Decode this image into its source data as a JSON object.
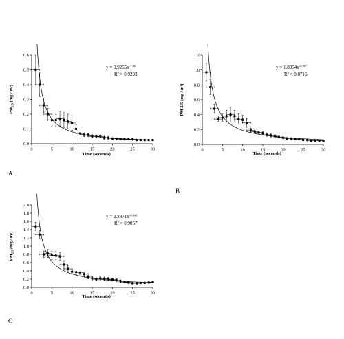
{
  "chart_data": [
    {
      "type": "scatter",
      "panel_label": "A",
      "xlabel": "Time (seconds)",
      "ylabel": {
        "main": "PM",
        "sub": "2.5",
        "unit": " (mg / m³)"
      },
      "xlim": [
        0,
        30
      ],
      "ylim": [
        0,
        0.6
      ],
      "x_ticks": [
        0,
        5,
        10,
        15,
        20,
        25,
        30
      ],
      "y_ticks": [
        "0.0",
        "0.1",
        "0.2",
        "0.3",
        "0.4",
        "0.5",
        "0.6"
      ],
      "equation": {
        "base": "y = 0.9255x",
        "exp": "-1.06"
      },
      "r2": "R² = 0.9293",
      "fit": {
        "a": 0.9255,
        "b": -1.06
      },
      "points": [
        {
          "x": 1,
          "y": 0.5,
          "xe": 1,
          "ye": 0.1
        },
        {
          "x": 2,
          "y": 0.4,
          "xe": 1,
          "ye": 0.08
        },
        {
          "x": 3,
          "y": 0.26,
          "xe": 1,
          "ye": 0.05
        },
        {
          "x": 4,
          "y": 0.2,
          "xe": 1,
          "ye": 0.04
        },
        {
          "x": 5,
          "y": 0.16,
          "xe": 1,
          "ye": 0.04
        },
        {
          "x": 6,
          "y": 0.16,
          "xe": 1,
          "ye": 0.04
        },
        {
          "x": 7,
          "y": 0.17,
          "xe": 1,
          "ye": 0.05
        },
        {
          "x": 8,
          "y": 0.16,
          "xe": 1,
          "ye": 0.05
        },
        {
          "x": 9,
          "y": 0.15,
          "xe": 1,
          "ye": 0.05
        },
        {
          "x": 10,
          "y": 0.14,
          "xe": 1,
          "ye": 0.05
        },
        {
          "x": 11,
          "y": 0.1,
          "xe": 1,
          "ye": 0.03
        },
        {
          "x": 12,
          "y": 0.07,
          "xe": 1,
          "ye": 0.03
        },
        {
          "x": 13,
          "y": 0.06,
          "xe": 1,
          "ye": 0.01
        },
        {
          "x": 14,
          "y": 0.06,
          "xe": 1,
          "ye": 0.01
        },
        {
          "x": 15,
          "y": 0.05,
          "xe": 1,
          "ye": 0.01
        },
        {
          "x": 16,
          "y": 0.05,
          "xe": 1,
          "ye": 0.01
        },
        {
          "x": 17,
          "y": 0.05,
          "xe": 1,
          "ye": 0.01
        },
        {
          "x": 18,
          "y": 0.04,
          "xe": 1,
          "ye": 0.01
        },
        {
          "x": 19,
          "y": 0.04,
          "xe": 1,
          "ye": 0.01
        },
        {
          "x": 20,
          "y": 0.035,
          "xe": 1,
          "ye": 0.005
        },
        {
          "x": 21,
          "y": 0.035,
          "xe": 1,
          "ye": 0.005
        },
        {
          "x": 22,
          "y": 0.03,
          "xe": 1,
          "ye": 0.005
        },
        {
          "x": 23,
          "y": 0.03,
          "xe": 1,
          "ye": 0.005
        },
        {
          "x": 24,
          "y": 0.03,
          "xe": 1,
          "ye": 0.005
        },
        {
          "x": 25,
          "y": 0.03,
          "xe": 1,
          "ye": 0.005
        },
        {
          "x": 26,
          "y": 0.025,
          "xe": 1,
          "ye": 0.005
        },
        {
          "x": 27,
          "y": 0.025,
          "xe": 1,
          "ye": 0.005
        },
        {
          "x": 28,
          "y": 0.025,
          "xe": 1,
          "ye": 0.005
        },
        {
          "x": 29,
          "y": 0.025,
          "xe": 1,
          "ye": 0.005
        },
        {
          "x": 30,
          "y": 0.025,
          "xe": 1,
          "ye": 0.005
        }
      ]
    },
    {
      "type": "scatter",
      "panel_label": "B",
      "xlabel": "Time (seconds)",
      "ylabel": {
        "main": "PM 2.5",
        "sub": "",
        "unit": " (mg / m³)"
      },
      "xlim": [
        0,
        30
      ],
      "ylim": [
        0,
        1.2
      ],
      "x_ticks": [
        0,
        5,
        10,
        15,
        20,
        25,
        30
      ],
      "y_ticks": [
        "0.0",
        "0.2",
        "0.4",
        "0.6",
        "0.8",
        "1.0",
        "1.2"
      ],
      "equation": {
        "base": "y = 1.8354x",
        "exp": "-0.987"
      },
      "r2": "R² = 0.8716",
      "fit": {
        "a": 1.8354,
        "b": -0.987
      },
      "points": [
        {
          "x": 1,
          "y": 0.97,
          "xe": 1,
          "ye": 0.12
        },
        {
          "x": 2,
          "y": 0.77,
          "xe": 1,
          "ye": 0.1
        },
        {
          "x": 3,
          "y": 0.48,
          "xe": 1,
          "ye": 0.06
        },
        {
          "x": 4,
          "y": 0.34,
          "xe": 1,
          "ye": 0.03
        },
        {
          "x": 5,
          "y": 0.36,
          "xe": 1,
          "ye": 0.05
        },
        {
          "x": 6,
          "y": 0.38,
          "xe": 1,
          "ye": 0.08
        },
        {
          "x": 7,
          "y": 0.4,
          "xe": 1,
          "ye": 0.1
        },
        {
          "x": 8,
          "y": 0.38,
          "xe": 1,
          "ye": 0.08
        },
        {
          "x": 9,
          "y": 0.34,
          "xe": 1,
          "ye": 0.07
        },
        {
          "x": 10,
          "y": 0.33,
          "xe": 1,
          "ye": 0.06
        },
        {
          "x": 11,
          "y": 0.29,
          "xe": 1,
          "ye": 0.06
        },
        {
          "x": 12,
          "y": 0.19,
          "xe": 1,
          "ye": 0.03
        },
        {
          "x": 13,
          "y": 0.17,
          "xe": 1,
          "ye": 0.02
        },
        {
          "x": 14,
          "y": 0.16,
          "xe": 1,
          "ye": 0.02
        },
        {
          "x": 15,
          "y": 0.15,
          "xe": 1,
          "ye": 0.02
        },
        {
          "x": 16,
          "y": 0.13,
          "xe": 1,
          "ye": 0.02
        },
        {
          "x": 17,
          "y": 0.12,
          "xe": 1,
          "ye": 0.02
        },
        {
          "x": 18,
          "y": 0.11,
          "xe": 1,
          "ye": 0.02
        },
        {
          "x": 19,
          "y": 0.1,
          "xe": 1,
          "ye": 0.01
        },
        {
          "x": 20,
          "y": 0.09,
          "xe": 1,
          "ye": 0.01
        },
        {
          "x": 21,
          "y": 0.08,
          "xe": 1,
          "ye": 0.01
        },
        {
          "x": 22,
          "y": 0.08,
          "xe": 1,
          "ye": 0.01
        },
        {
          "x": 23,
          "y": 0.07,
          "xe": 1,
          "ye": 0.01
        },
        {
          "x": 24,
          "y": 0.07,
          "xe": 1,
          "ye": 0.01
        },
        {
          "x": 25,
          "y": 0.06,
          "xe": 1,
          "ye": 0.01
        },
        {
          "x": 26,
          "y": 0.06,
          "xe": 1,
          "ye": 0.01
        },
        {
          "x": 27,
          "y": 0.05,
          "xe": 1,
          "ye": 0.01
        },
        {
          "x": 28,
          "y": 0.05,
          "xe": 1,
          "ye": 0.01
        },
        {
          "x": 29,
          "y": 0.05,
          "xe": 1,
          "ye": 0.01
        },
        {
          "x": 30,
          "y": 0.05,
          "xe": 1,
          "ye": 0.01
        }
      ]
    },
    {
      "type": "scatter",
      "panel_label": "C",
      "xlabel": "Time (seconds)",
      "ylabel": {
        "main": "PM",
        "sub": "2.5",
        "unit": " (mg / m³)"
      },
      "xlim": [
        0,
        30
      ],
      "ylim": [
        0,
        2.0
      ],
      "x_ticks": [
        0,
        5,
        10,
        15,
        20,
        25,
        30
      ],
      "y_ticks": [
        "0.0",
        "0.2",
        "0.4",
        "0.6",
        "0.8",
        "1.0",
        "1.2",
        "1.4",
        "1.6",
        "1.8",
        "2.0"
      ],
      "equation": {
        "base": "y = 2.8871x",
        "exp": "-0.948"
      },
      "r2": "R² = 0.9057",
      "fit": {
        "a": 2.8871,
        "b": -0.948
      },
      "points": [
        {
          "x": 1,
          "y": 1.48,
          "xe": 1,
          "ye": 0.1
        },
        {
          "x": 2,
          "y": 1.28,
          "xe": 1,
          "ye": 0.1
        },
        {
          "x": 3,
          "y": 0.8,
          "xe": 1,
          "ye": 0.08
        },
        {
          "x": 4,
          "y": 0.82,
          "xe": 1,
          "ye": 0.1
        },
        {
          "x": 5,
          "y": 0.78,
          "xe": 1,
          "ye": 0.1
        },
        {
          "x": 6,
          "y": 0.77,
          "xe": 1,
          "ye": 0.1
        },
        {
          "x": 7,
          "y": 0.75,
          "xe": 1,
          "ye": 0.1
        },
        {
          "x": 8,
          "y": 0.55,
          "xe": 1,
          "ye": 0.1
        },
        {
          "x": 9,
          "y": 0.45,
          "xe": 1,
          "ye": 0.08
        },
        {
          "x": 10,
          "y": 0.38,
          "xe": 1,
          "ye": 0.06
        },
        {
          "x": 11,
          "y": 0.37,
          "xe": 1,
          "ye": 0.06
        },
        {
          "x": 12,
          "y": 0.36,
          "xe": 1,
          "ye": 0.06
        },
        {
          "x": 13,
          "y": 0.32,
          "xe": 1,
          "ye": 0.05
        },
        {
          "x": 14,
          "y": 0.25,
          "xe": 1,
          "ye": 0.04
        },
        {
          "x": 15,
          "y": 0.22,
          "xe": 1,
          "ye": 0.04
        },
        {
          "x": 16,
          "y": 0.2,
          "xe": 1,
          "ye": 0.03
        },
        {
          "x": 17,
          "y": 0.22,
          "xe": 1,
          "ye": 0.04
        },
        {
          "x": 18,
          "y": 0.21,
          "xe": 1,
          "ye": 0.04
        },
        {
          "x": 19,
          "y": 0.2,
          "xe": 1,
          "ye": 0.04
        },
        {
          "x": 20,
          "y": 0.19,
          "xe": 1,
          "ye": 0.03
        },
        {
          "x": 21,
          "y": 0.18,
          "xe": 1,
          "ye": 0.03
        },
        {
          "x": 22,
          "y": 0.15,
          "xe": 1,
          "ye": 0.03
        },
        {
          "x": 23,
          "y": 0.13,
          "xe": 1,
          "ye": 0.02
        },
        {
          "x": 24,
          "y": 0.12,
          "xe": 1,
          "ye": 0.02
        },
        {
          "x": 25,
          "y": 0.1,
          "xe": 1,
          "ye": 0.02
        },
        {
          "x": 26,
          "y": 0.1,
          "xe": 1,
          "ye": 0.02
        },
        {
          "x": 27,
          "y": 0.11,
          "xe": 1,
          "ye": 0.02
        },
        {
          "x": 28,
          "y": 0.11,
          "xe": 1,
          "ye": 0.02
        },
        {
          "x": 29,
          "y": 0.12,
          "xe": 1,
          "ye": 0.02
        },
        {
          "x": 30,
          "y": 0.13,
          "xe": 1,
          "ye": 0.02
        }
      ]
    }
  ]
}
